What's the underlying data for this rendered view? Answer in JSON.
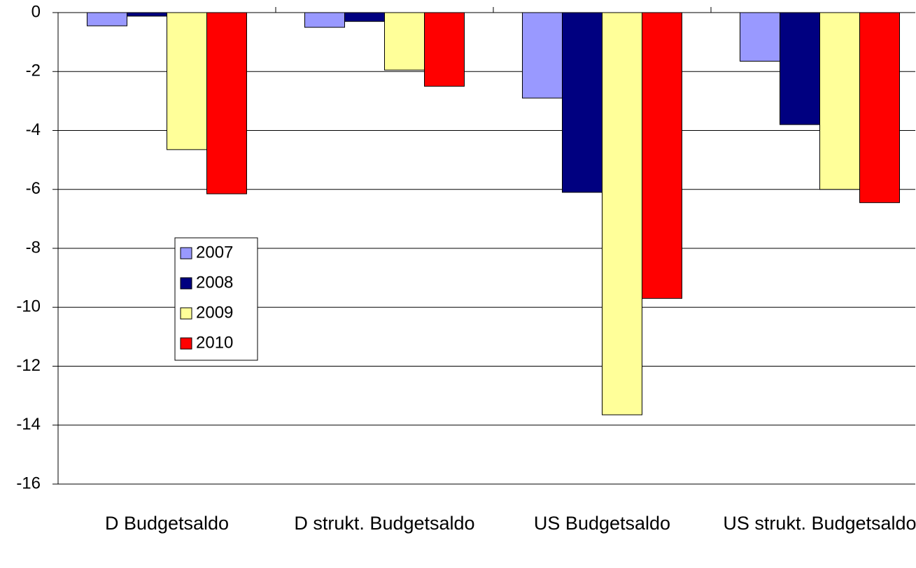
{
  "chart_data": {
    "type": "bar",
    "categories": [
      "D Budgetsaldo",
      "D strukt. Budgetsaldo",
      "US Budgetsaldo",
      "US strukt. Budgetsaldo"
    ],
    "series": [
      {
        "name": "2007",
        "color": "#9999ff",
        "values": [
          -0.45,
          -0.5,
          -2.9,
          -1.65
        ]
      },
      {
        "name": "2008",
        "color": "#000080",
        "values": [
          -0.12,
          -0.3,
          -6.1,
          -3.8
        ]
      },
      {
        "name": "2009",
        "color": "#ffff99",
        "values": [
          -4.65,
          -1.95,
          -13.65,
          -6.0
        ]
      },
      {
        "name": "2010",
        "color": "#ff0000",
        "values": [
          -6.15,
          -2.5,
          -9.7,
          -6.45
        ]
      }
    ],
    "ylim": [
      -16,
      0
    ],
    "yticks": [
      0,
      -2,
      -4,
      -6,
      -8,
      -10,
      -12,
      -14,
      -16
    ],
    "grid": true,
    "legend": "left"
  }
}
